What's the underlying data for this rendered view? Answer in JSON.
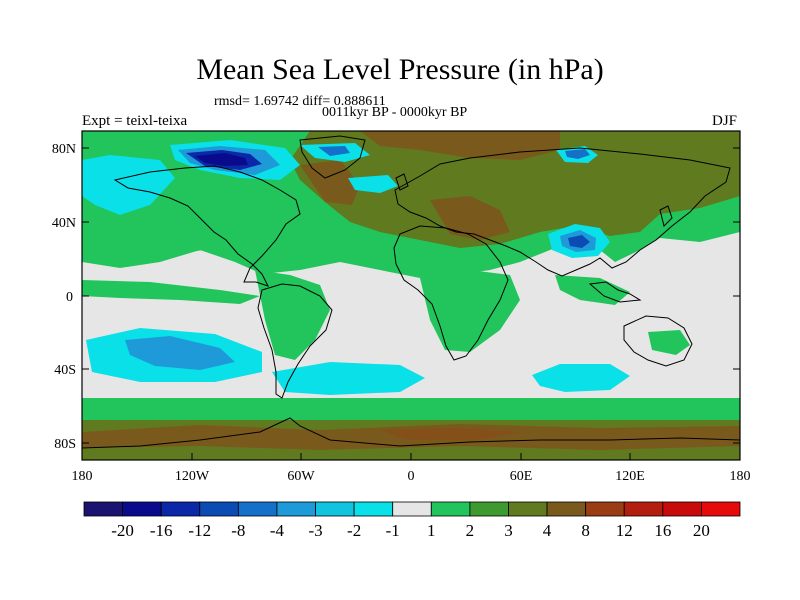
{
  "header": {
    "title": "Mean Sea Level Pressure (in hPa)",
    "stats": "rmsd= 1.69742 diff= 0.888611",
    "period": "0011kyr BP - 0000kyr BP",
    "experiment": "Expt = teixl-teixa",
    "season": "DJF"
  },
  "map": {
    "lat_ticks": [
      "80N",
      "40N",
      "0",
      "40S",
      "80S"
    ],
    "lon_ticks": [
      "180",
      "120W",
      "60W",
      "0",
      "60E",
      "120E",
      "180"
    ],
    "land_outline_color": "#000000"
  },
  "colorbar": {
    "labels": [
      "-20",
      "-16",
      "-12",
      "-8",
      "-4",
      "-3",
      "-2",
      "-1",
      "1",
      "2",
      "3",
      "4",
      "8",
      "12",
      "16",
      "20"
    ],
    "colors": [
      "#1a1470",
      "#0a0a8c",
      "#0a28a8",
      "#0a4cb4",
      "#1470c8",
      "#1e9ad8",
      "#10c4e0",
      "#0ae0e8",
      "#e6e6e6",
      "#22c45c",
      "#3c9a30",
      "#607a20",
      "#7a5a1c",
      "#9a3c14",
      "#b41e0e",
      "#c80a0a",
      "#e60a0a"
    ]
  }
}
